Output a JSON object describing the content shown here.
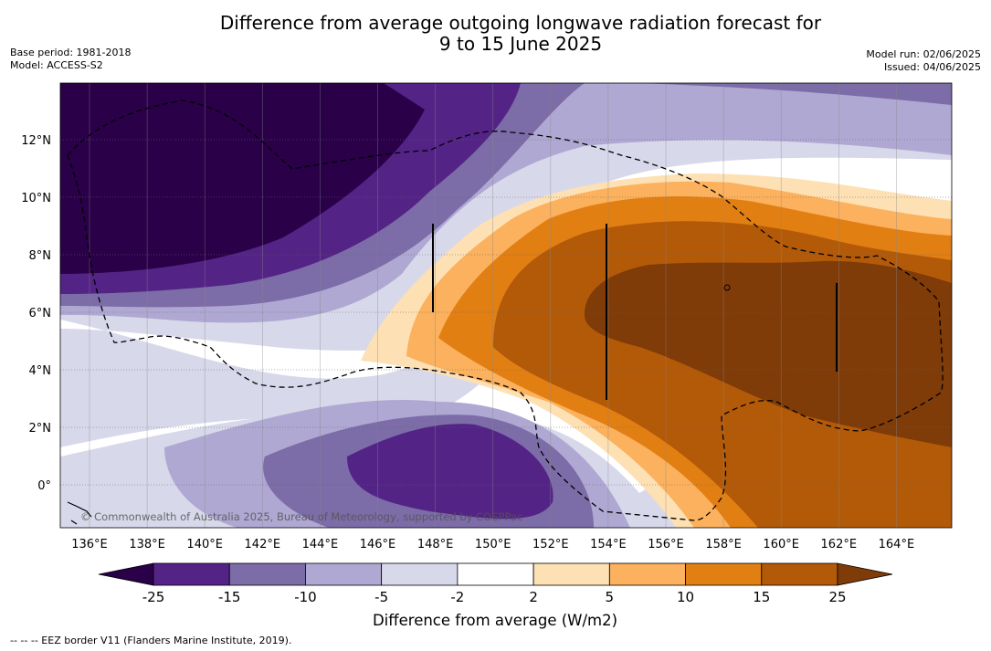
{
  "title": {
    "line1": "Difference from average outgoing longwave radiation forecast for",
    "line2": "9 to 15 June 2025"
  },
  "base_period": "Base period: 1981-2018",
  "model": "Model: ACCESS-S2",
  "model_run": "Model run: 02/06/2025",
  "issued": "Issued: 04/06/2025",
  "copyright": "© Commonwealth of Australia 2025, Bureau of Meteorology, supported by COSPPac",
  "map": {
    "lon_labels": [
      "136°E",
      "138°E",
      "140°E",
      "142°E",
      "144°E",
      "146°E",
      "148°E",
      "150°E",
      "152°E",
      "154°E",
      "156°E",
      "158°E",
      "160°E",
      "162°E",
      "164°E"
    ],
    "lat_labels": [
      "0°",
      "2°N",
      "4°N",
      "6°N",
      "8°N",
      "10°N",
      "12°N"
    ]
  },
  "colorbar": {
    "ticks": [
      "-25",
      "-15",
      "-10",
      "-5",
      "-2",
      "2",
      "5",
      "10",
      "15",
      "25"
    ],
    "colors": [
      "#2a0048",
      "#532386",
      "#7c6ca7",
      "#afa8d2",
      "#d8d8eb",
      "#ffffff",
      "#fde0b3",
      "#fbb15d",
      "#e17f13",
      "#b35a09",
      "#7f3b08"
    ],
    "label": "Difference from average (W/m2)"
  },
  "footer": "-- -- -- EEZ border V11 (Flanders Marine Institute, 2019)."
}
